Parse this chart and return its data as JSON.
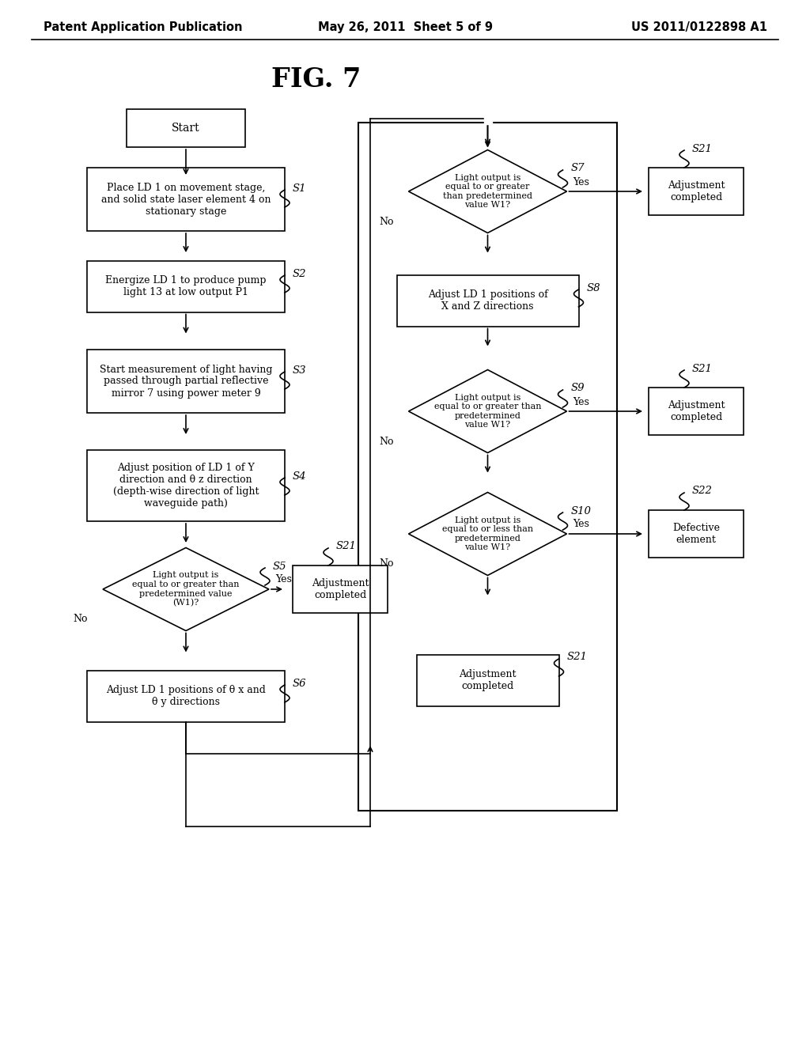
{
  "title": "FIG. 7",
  "header_left": "Patent Application Publication",
  "header_center": "May 26, 2011  Sheet 5 of 9",
  "header_right": "US 2011/0122898 A1",
  "background_color": "#ffffff",
  "font_size_header": 10.5,
  "font_size_title": 24,
  "font_size_box": 9.0,
  "font_size_label": 9.5,
  "font_size_yesno": 9.0
}
